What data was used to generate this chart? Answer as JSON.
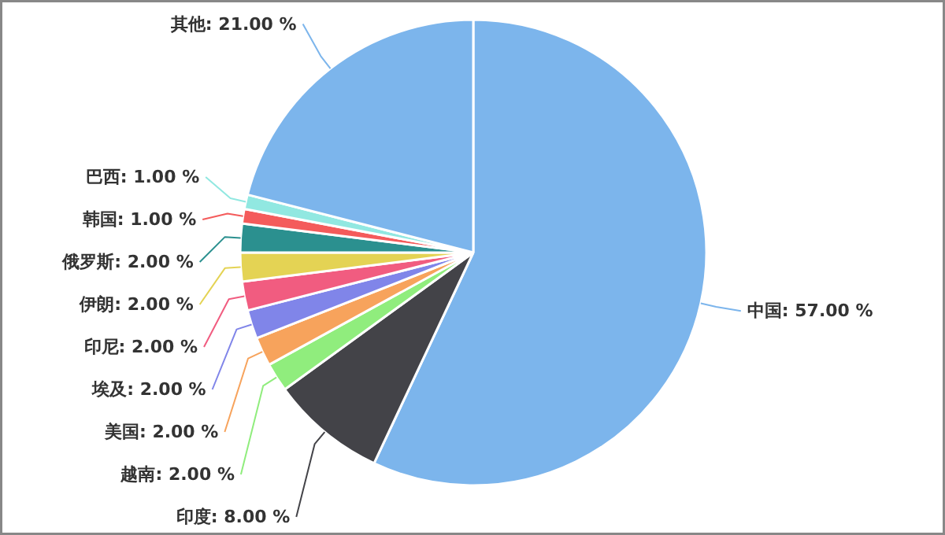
{
  "chart_data": {
    "type": "pie",
    "categories": [
      "中国",
      "印度",
      "越南",
      "美国",
      "埃及",
      "印尼",
      "伊朗",
      "俄罗斯",
      "韩国",
      "巴西",
      "其他"
    ],
    "values": [
      57,
      8,
      2,
      2,
      2,
      2,
      2,
      2,
      1,
      1,
      21
    ],
    "colors": [
      "#7cb5ec",
      "#434348",
      "#90ed7d",
      "#f7a35c",
      "#8085e9",
      "#f15c80",
      "#e4d354",
      "#2b908f",
      "#f45b5b",
      "#91e8e1",
      "#7cb5ec"
    ],
    "value_labels": [
      "57.00 %",
      "8.00 %",
      "2.00 %",
      "2.00 %",
      "2.00 %",
      "2.00 %",
      "2.00 %",
      "2.00 %",
      "1.00 %",
      "1.00 %",
      "21.00 %"
    ]
  }
}
